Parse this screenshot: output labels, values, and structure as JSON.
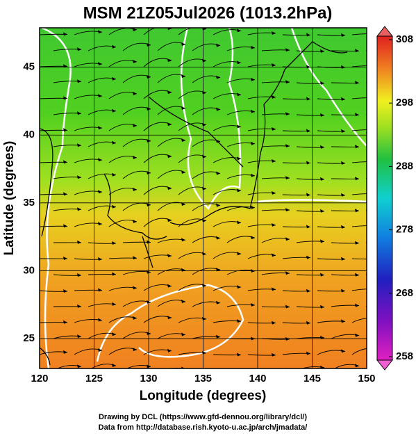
{
  "map": {
    "title": "MSM 21Z05Jul2026 (1013.2hPa)",
    "x_axis": {
      "label": "Longitude (degrees)",
      "range": [
        120,
        150
      ],
      "ticks": [
        120,
        125,
        130,
        135,
        140,
        145,
        150
      ]
    },
    "y_axis": {
      "label": "Latitude  (degrees)",
      "range": [
        22.8,
        47.9
      ],
      "ticks": [
        25,
        30,
        35,
        40,
        45
      ]
    },
    "colorbar": {
      "range": [
        258,
        308
      ],
      "ticks": [
        258,
        268,
        278,
        288,
        298,
        308
      ]
    },
    "credits": [
      "Drawing by DCL (https://www.gfd-dennou.org/library/dcl/)",
      "Data from http://database.rish.kyoto-u.ac.jp/arch/jmadata/"
    ]
  }
}
